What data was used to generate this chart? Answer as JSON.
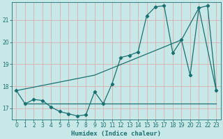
{
  "title": "",
  "xlabel": "Humidex (Indice chaleur)",
  "bg_color": "#c8e8e8",
  "line_color": "#1a7070",
  "grid_color": "#d8b0b0",
  "xlim": [
    -0.5,
    23.5
  ],
  "ylim": [
    16.5,
    21.8
  ],
  "xticks": [
    0,
    1,
    2,
    3,
    4,
    5,
    6,
    7,
    8,
    9,
    10,
    11,
    12,
    13,
    14,
    15,
    16,
    17,
    18,
    19,
    20,
    21,
    22,
    23
  ],
  "yticks": [
    17,
    18,
    19,
    20,
    21
  ],
  "line1_x": [
    0,
    1,
    2,
    3,
    4,
    5,
    6,
    7,
    8,
    9,
    10,
    11,
    12,
    13,
    14,
    15,
    16,
    17,
    18,
    19,
    20,
    21,
    22,
    23
  ],
  "line1_y": [
    17.8,
    17.2,
    17.4,
    17.35,
    17.05,
    16.85,
    16.75,
    16.65,
    16.7,
    17.75,
    17.2,
    18.1,
    19.3,
    19.4,
    19.55,
    21.2,
    21.6,
    21.65,
    19.5,
    20.1,
    18.5,
    21.55,
    21.65,
    17.8
  ],
  "line2_x": [
    1,
    2,
    9,
    22,
    23
  ],
  "line2_y": [
    17.2,
    17.2,
    17.2,
    17.2,
    17.2
  ],
  "line3_x": [
    0,
    9,
    19,
    21,
    23
  ],
  "line3_y": [
    17.8,
    18.5,
    20.1,
    21.55,
    17.8
  ]
}
